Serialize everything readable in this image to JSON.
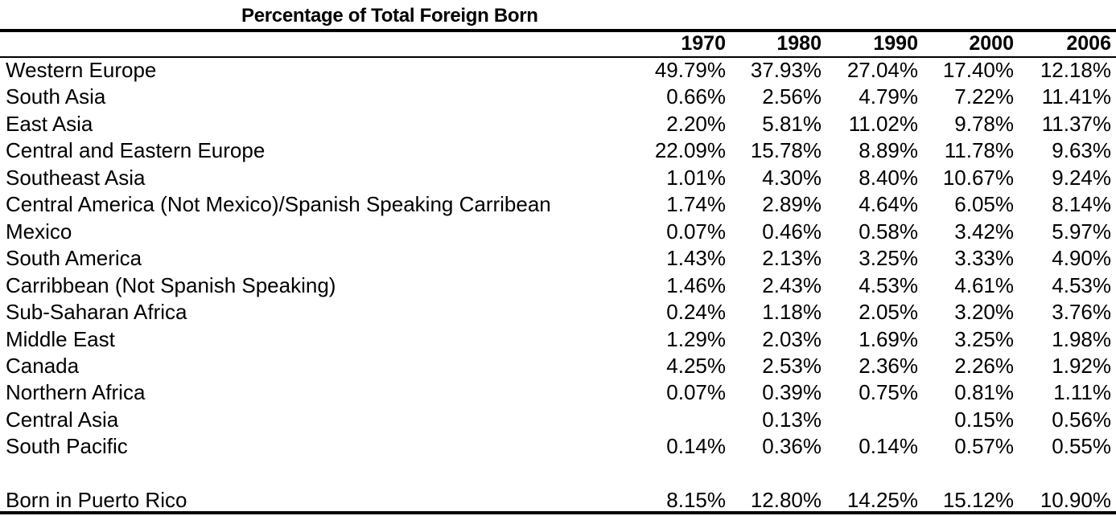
{
  "chart_data": {
    "type": "table",
    "title": "Percentage of Total Foreign Born",
    "columns": [
      "1970",
      "1980",
      "1990",
      "2000",
      "2006"
    ],
    "rows": [
      {
        "label": "Western Europe",
        "values": [
          "49.79%",
          "37.93%",
          "27.04%",
          "17.40%",
          "12.18%"
        ]
      },
      {
        "label": "South Asia",
        "values": [
          "0.66%",
          "2.56%",
          "4.79%",
          "7.22%",
          "11.41%"
        ]
      },
      {
        "label": "East Asia",
        "values": [
          "2.20%",
          "5.81%",
          "11.02%",
          "9.78%",
          "11.37%"
        ]
      },
      {
        "label": "Central and Eastern Europe",
        "values": [
          "22.09%",
          "15.78%",
          "8.89%",
          "11.78%",
          "9.63%"
        ]
      },
      {
        "label": "Southeast Asia",
        "values": [
          "1.01%",
          "4.30%",
          "8.40%",
          "10.67%",
          "9.24%"
        ]
      },
      {
        "label": "Central America (Not Mexico)/Spanish Speaking Carribean",
        "values": [
          "1.74%",
          "2.89%",
          "4.64%",
          "6.05%",
          "8.14%"
        ]
      },
      {
        "label": "Mexico",
        "values": [
          "0.07%",
          "0.46%",
          "0.58%",
          "3.42%",
          "5.97%"
        ]
      },
      {
        "label": "South America",
        "values": [
          "1.43%",
          "2.13%",
          "3.25%",
          "3.33%",
          "4.90%"
        ]
      },
      {
        "label": "Carribbean (Not Spanish Speaking)",
        "values": [
          "1.46%",
          "2.43%",
          "4.53%",
          "4.61%",
          "4.53%"
        ]
      },
      {
        "label": "Sub-Saharan Africa",
        "values": [
          "0.24%",
          "1.18%",
          "2.05%",
          "3.20%",
          "3.76%"
        ]
      },
      {
        "label": "Middle East",
        "values": [
          "1.29%",
          "2.03%",
          "1.69%",
          "3.25%",
          "1.98%"
        ]
      },
      {
        "label": "Canada",
        "values": [
          "4.25%",
          "2.53%",
          "2.36%",
          "2.26%",
          "1.92%"
        ]
      },
      {
        "label": "Northern Africa",
        "values": [
          "0.07%",
          "0.39%",
          "0.75%",
          "0.81%",
          "1.11%"
        ]
      },
      {
        "label": "Central Asia",
        "values": [
          "",
          "0.13%",
          "",
          "0.15%",
          "0.56%"
        ]
      },
      {
        "label": "South Pacific",
        "values": [
          "0.14%",
          "0.36%",
          "0.14%",
          "0.57%",
          "0.55%"
        ]
      }
    ],
    "footer_row": {
      "label": "Born in Puerto Rico",
      "values": [
        "8.15%",
        "12.80%",
        "14.25%",
        "15.12%",
        "10.90%"
      ]
    }
  }
}
